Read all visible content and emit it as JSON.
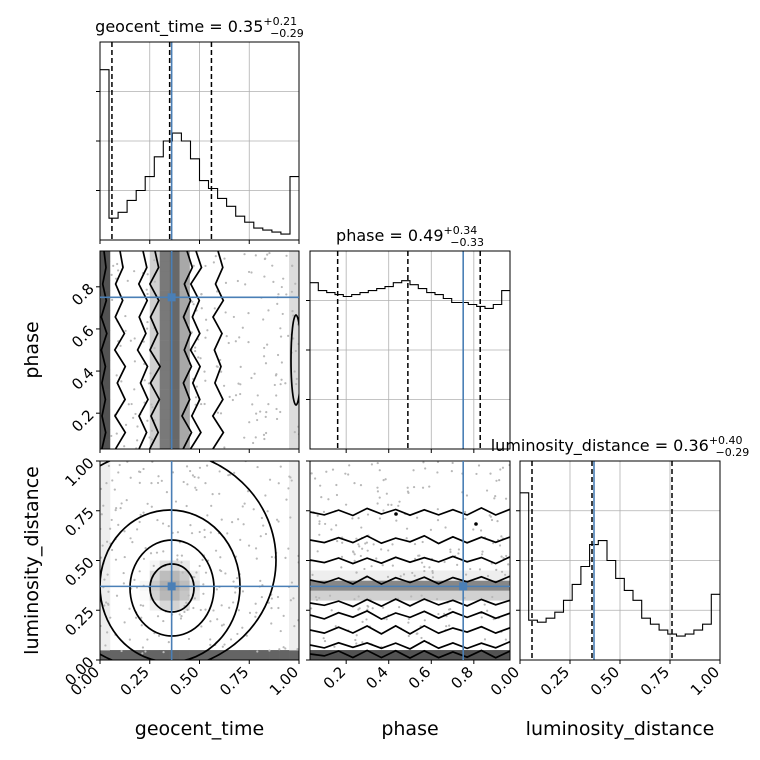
{
  "chart_data": {
    "type": "corner",
    "parameters": [
      "geocent_time",
      "phase",
      "luminosity_distance"
    ],
    "truths": {
      "geocent_time": 0.36,
      "phase": 0.75,
      "luminosity_distance": 0.37
    },
    "ticks": {
      "geocent_time": {
        "values": [
          0,
          0.25,
          0.5,
          0.75,
          1.0
        ],
        "labels": [
          "0.00",
          "0.25",
          "0.50",
          "0.75",
          "1.00"
        ]
      },
      "phase": {
        "values": [
          0.2,
          0.4,
          0.6,
          0.8
        ],
        "labels": [
          "0.2",
          "0.4",
          "0.6",
          "0.8"
        ]
      },
      "luminosity_distance": {
        "values": [
          0,
          0.25,
          0.5,
          0.75,
          1.0
        ],
        "labels": [
          "0.00",
          "0.25",
          "0.50",
          "0.75",
          "1.00"
        ]
      }
    },
    "ranges": {
      "geocent_time": [
        0,
        1
      ],
      "phase": [
        0.03,
        0.97
      ],
      "luminosity_distance": [
        0,
        1
      ]
    },
    "diagonals": [
      {
        "param": "geocent_time",
        "title_name": "geocent_time",
        "title_value": "0.35",
        "title_plus": "+0.21",
        "title_minus": "−0.29",
        "quantiles": [
          0.06,
          0.35,
          0.56
        ],
        "histogram": [
          0.86,
          0.11,
          0.14,
          0.2,
          0.25,
          0.32,
          0.42,
          0.5,
          0.54,
          0.5,
          0.41,
          0.3,
          0.26,
          0.21,
          0.17,
          0.12,
          0.09,
          0.06,
          0.05,
          0.04,
          0.03,
          0.32
        ]
      },
      {
        "param": "phase",
        "title_name": "phase",
        "title_value": "0.49",
        "title_plus": "+0.34",
        "title_minus": "−0.33",
        "quantiles": [
          0.16,
          0.49,
          0.83
        ],
        "histogram": [
          0.84,
          0.8,
          0.79,
          0.78,
          0.77,
          0.78,
          0.79,
          0.8,
          0.81,
          0.82,
          0.84,
          0.85,
          0.83,
          0.81,
          0.79,
          0.78,
          0.76,
          0.74,
          0.74,
          0.73,
          0.72,
          0.71,
          0.73,
          0.8
        ]
      },
      {
        "param": "luminosity_distance",
        "title_name": "luminosity_distance",
        "title_value": "0.36",
        "title_plus": "+0.40",
        "title_minus": "−0.29",
        "quantiles": [
          0.06,
          0.36,
          0.76
        ],
        "histogram": [
          0.84,
          0.2,
          0.19,
          0.21,
          0.24,
          0.3,
          0.38,
          0.47,
          0.58,
          0.6,
          0.5,
          0.41,
          0.35,
          0.3,
          0.21,
          0.18,
          0.15,
          0.13,
          0.12,
          0.13,
          0.15,
          0.18,
          0.33
        ]
      }
    ]
  }
}
